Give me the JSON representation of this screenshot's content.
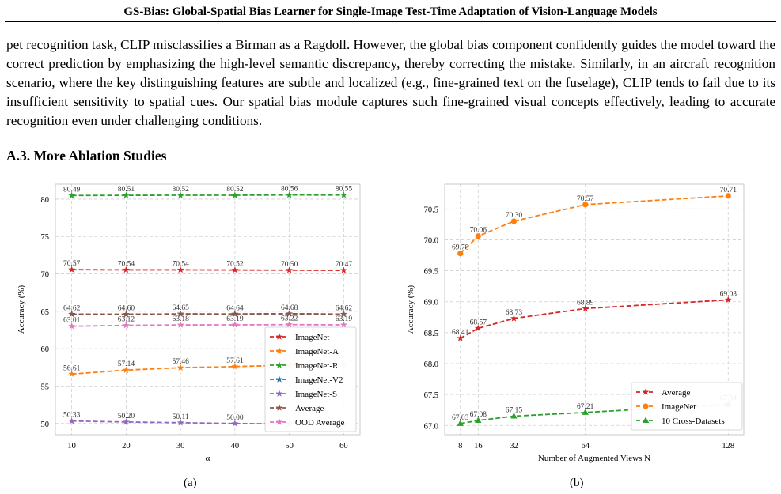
{
  "header": "GS-Bias: Global-Spatial Bias Learner for Single-Image Test-Time Adaptation of Vision-Language Models",
  "paragraph": "pet recognition task, CLIP misclassifies a Birman as a Ragdoll. However, the global bias component confidently guides the model toward the correct prediction by emphasizing the high-level semantic discrepancy, thereby correcting the mistake. Similarly, in an aircraft recognition scenario, where the key distinguishing features are subtle and localized (e.g., fine-grained text on the fuselage), CLIP tends to fail due to its insufficient sensitivity to spatial cues. Our spatial bias module captures such fine-grained visual concepts effectively, leading to accurate recognition even under challenging conditions.",
  "section_title": "A.3. More Ablation Studies",
  "captions": {
    "a": "(a)",
    "b": "(b)"
  },
  "chart_data": [
    {
      "type": "line",
      "xlabel": "α",
      "ylabel": "Accuracy (%)",
      "x": [
        10,
        20,
        30,
        40,
        50,
        60
      ],
      "xlim": [
        7,
        63
      ],
      "ylim": [
        48.5,
        82
      ],
      "yticks": [
        50,
        55,
        60,
        65,
        70,
        75,
        80
      ],
      "grid": true,
      "legend_position": "lower-right",
      "series": [
        {
          "name": "ImageNet",
          "color": "#d62728",
          "marker": "star",
          "values": [
            70.57,
            70.54,
            70.54,
            70.52,
            70.5,
            70.47
          ],
          "labels": [
            "70.57",
            "70.54",
            "70.54",
            "70.52",
            "70.50",
            "70.47"
          ]
        },
        {
          "name": "ImageNet-A",
          "color": "#ff7f0e",
          "marker": "star",
          "values": [
            56.61,
            57.14,
            57.46,
            57.61,
            57.8,
            57.9
          ],
          "labels": [
            "56.61",
            "57.14",
            "57.46",
            "57.61",
            "",
            ""
          ]
        },
        {
          "name": "ImageNet-R",
          "color": "#2ca02c",
          "marker": "star",
          "values": [
            80.49,
            80.51,
            80.52,
            80.52,
            80.56,
            80.55
          ],
          "labels": [
            "80.49",
            "80.51",
            "80.52",
            "80.52",
            "80.56",
            "80.55"
          ]
        },
        {
          "name": "ImageNet-V2",
          "color": "#1f77b4",
          "marker": "star",
          "values": [
            64.62,
            64.6,
            64.65,
            64.64,
            64.68,
            64.62
          ],
          "labels": [
            "",
            "",
            "",
            "",
            "",
            ""
          ]
        },
        {
          "name": "ImageNet-S",
          "color": "#9467bd",
          "marker": "star",
          "values": [
            50.33,
            50.2,
            50.11,
            50.0,
            49.95,
            49.9
          ],
          "labels": [
            "50.33",
            "50.20",
            "50.11",
            "50.00",
            "",
            ""
          ]
        },
        {
          "name": "Average",
          "color": "#8c564b",
          "marker": "star",
          "values": [
            64.62,
            64.6,
            64.65,
            64.64,
            64.68,
            64.62
          ],
          "labels": [
            "64.62",
            "64.60",
            "64.65",
            "64.64",
            "64.68",
            "64.62"
          ]
        },
        {
          "name": "OOD Average",
          "color": "#e377c2",
          "marker": "star",
          "values": [
            63.01,
            63.12,
            63.18,
            63.19,
            63.22,
            63.19
          ],
          "labels": [
            "63.01",
            "63.12",
            "63.18",
            "63.19",
            "63.22",
            "63.19"
          ]
        }
      ]
    },
    {
      "type": "line",
      "xlabel": "Number of Augmented Views N",
      "ylabel": "Accuracy (%)",
      "x": [
        8,
        16,
        32,
        64,
        128
      ],
      "xlim": [
        1,
        135
      ],
      "ylim": [
        66.85,
        70.9
      ],
      "yticks": [
        67.0,
        67.5,
        68.0,
        68.5,
        69.0,
        69.5,
        70.0,
        70.5
      ],
      "grid": true,
      "legend_position": "lower-right",
      "series": [
        {
          "name": "Average",
          "color": "#d62728",
          "marker": "star",
          "values": [
            68.41,
            68.57,
            68.73,
            68.89,
            69.03
          ],
          "labels": [
            "68.41",
            "68.57",
            "68.73",
            "68.89",
            "69.03"
          ]
        },
        {
          "name": "ImageNet",
          "color": "#ff7f0e",
          "marker": "circle",
          "values": [
            69.78,
            70.06,
            70.3,
            70.57,
            70.71
          ],
          "labels": [
            "69.78",
            "70.06",
            "70.30",
            "70.57",
            "70.71"
          ]
        },
        {
          "name": "10 Cross-Datasets",
          "color": "#2ca02c",
          "marker": "triangle",
          "values": [
            67.03,
            67.08,
            67.15,
            67.21,
            67.34
          ],
          "labels": [
            "67.03",
            "67.08",
            "67.15",
            "67.21",
            "67.34"
          ]
        }
      ]
    }
  ]
}
